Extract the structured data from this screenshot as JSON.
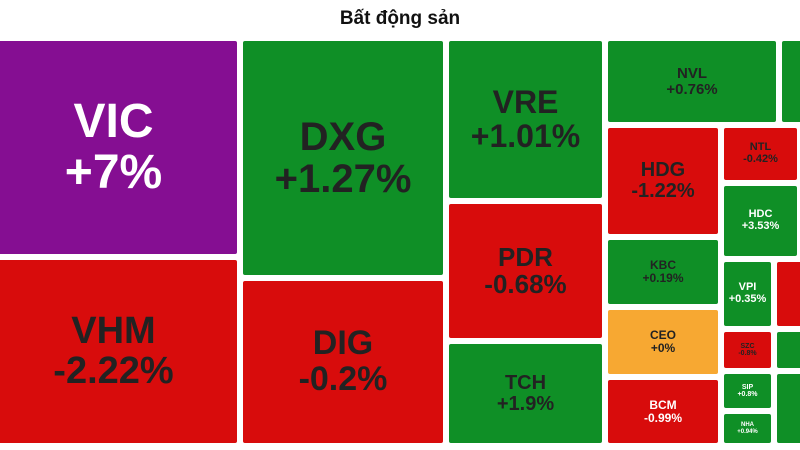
{
  "chart_data": {
    "type": "treemap",
    "title": "Bất động sản",
    "colors": {
      "up": "#0f8f26",
      "down": "#d80c0c",
      "ceiling": "#850e92",
      "unchanged": "#f7a832",
      "text_dark": "#222222",
      "text_light": "#ffffff"
    },
    "tiles": [
      {
        "symbol": "VIC",
        "change": "+7%",
        "value": 7,
        "status": "ceiling"
      },
      {
        "symbol": "VHM",
        "change": "-2.22%",
        "value": -2.22,
        "status": "down"
      },
      {
        "symbol": "DXG",
        "change": "+1.27%",
        "value": 1.27,
        "status": "up"
      },
      {
        "symbol": "DIG",
        "change": "-0.2%",
        "value": -0.2,
        "status": "down"
      },
      {
        "symbol": "VRE",
        "change": "+1.01%",
        "value": 1.01,
        "status": "up"
      },
      {
        "symbol": "PDR",
        "change": "-0.68%",
        "value": -0.68,
        "status": "down"
      },
      {
        "symbol": "TCH",
        "change": "+1.9%",
        "value": 1.9,
        "status": "up"
      },
      {
        "symbol": "NVL",
        "change": "+0.76%",
        "value": 0.76,
        "status": "up"
      },
      {
        "symbol": "HDG",
        "change": "-1.22%",
        "value": -1.22,
        "status": "down"
      },
      {
        "symbol": "KBC",
        "change": "+0.19%",
        "value": 0.19,
        "status": "up"
      },
      {
        "symbol": "CEO",
        "change": "+0%",
        "value": 0,
        "status": "unchanged"
      },
      {
        "symbol": "BCM",
        "change": "-0.99%",
        "value": -0.99,
        "status": "down"
      },
      {
        "symbol": "NTL",
        "change": "-0.42%",
        "value": -0.42,
        "status": "down"
      },
      {
        "symbol": "HDC",
        "change": "+3.53%",
        "value": 3.53,
        "status": "up"
      },
      {
        "symbol": "VPI",
        "change": "+0.35%",
        "value": 0.35,
        "status": "up"
      },
      {
        "symbol": "SZC",
        "change": "-0.8%",
        "value": -0.8,
        "status": "down"
      },
      {
        "symbol": "SIP",
        "change": "+0.8%",
        "value": 0.8,
        "status": "up"
      },
      {
        "symbol": "NHA",
        "change": "+0.94%",
        "value": 0.94,
        "status": "up"
      },
      {
        "symbol": "",
        "change": "",
        "value": null,
        "status": "up"
      },
      {
        "symbol": "",
        "change": "",
        "value": null,
        "status": "down"
      },
      {
        "symbol": "",
        "change": "",
        "value": null,
        "status": "up"
      },
      {
        "symbol": "",
        "change": "",
        "value": null,
        "status": "up"
      }
    ]
  }
}
